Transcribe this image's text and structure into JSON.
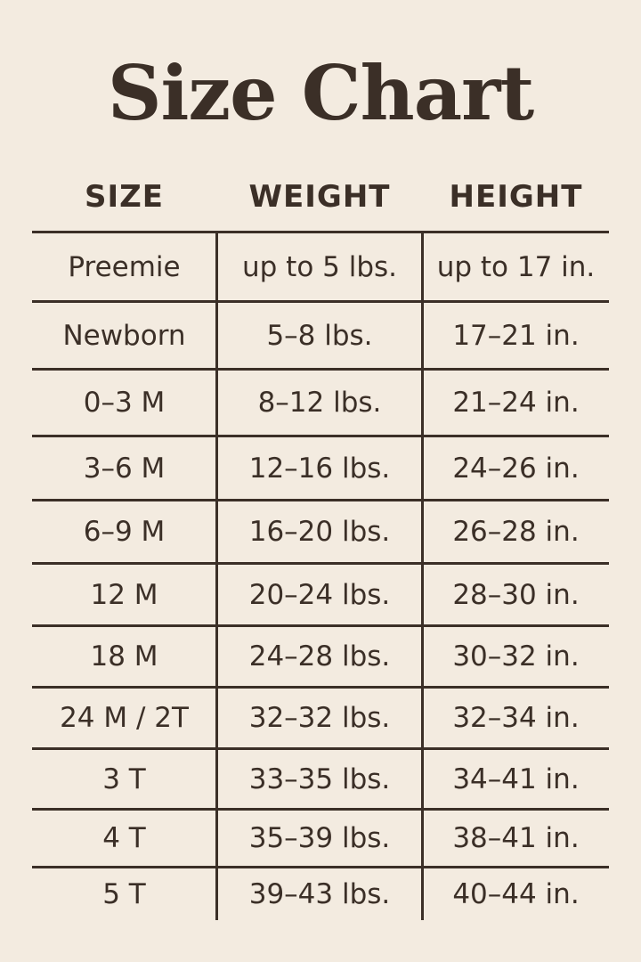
{
  "title": "Size Chart",
  "columns": [
    "SIZE",
    "WEIGHT",
    "HEIGHT"
  ],
  "rows": [
    [
      "Preemie",
      "up to 5 lbs.",
      "up to 17 in."
    ],
    [
      "Newborn",
      "5–8 lbs.",
      "17–21 in."
    ],
    [
      "0–3 M",
      "8–12 lbs.",
      "21–24 in."
    ],
    [
      "3–6 M",
      "12–16 lbs.",
      "24–26 in."
    ],
    [
      "6–9 M",
      "16–20 lbs.",
      "26–28 in."
    ],
    [
      "12 M",
      "20–24 lbs.",
      "28–30 in."
    ],
    [
      "18 M",
      "24–28 lbs.",
      "30–32 in."
    ],
    [
      "24 M / 2T",
      "32–32 lbs.",
      "32–34 in."
    ],
    [
      "3 T",
      "33–35 lbs.",
      "34–41 in."
    ],
    [
      "4 T",
      "35–39 lbs.",
      "38–41 in."
    ],
    [
      "5 T",
      "39–43 lbs.",
      "40–44 in."
    ]
  ],
  "colors": {
    "background": "#f3ebe0",
    "text": "#3b2f27"
  }
}
